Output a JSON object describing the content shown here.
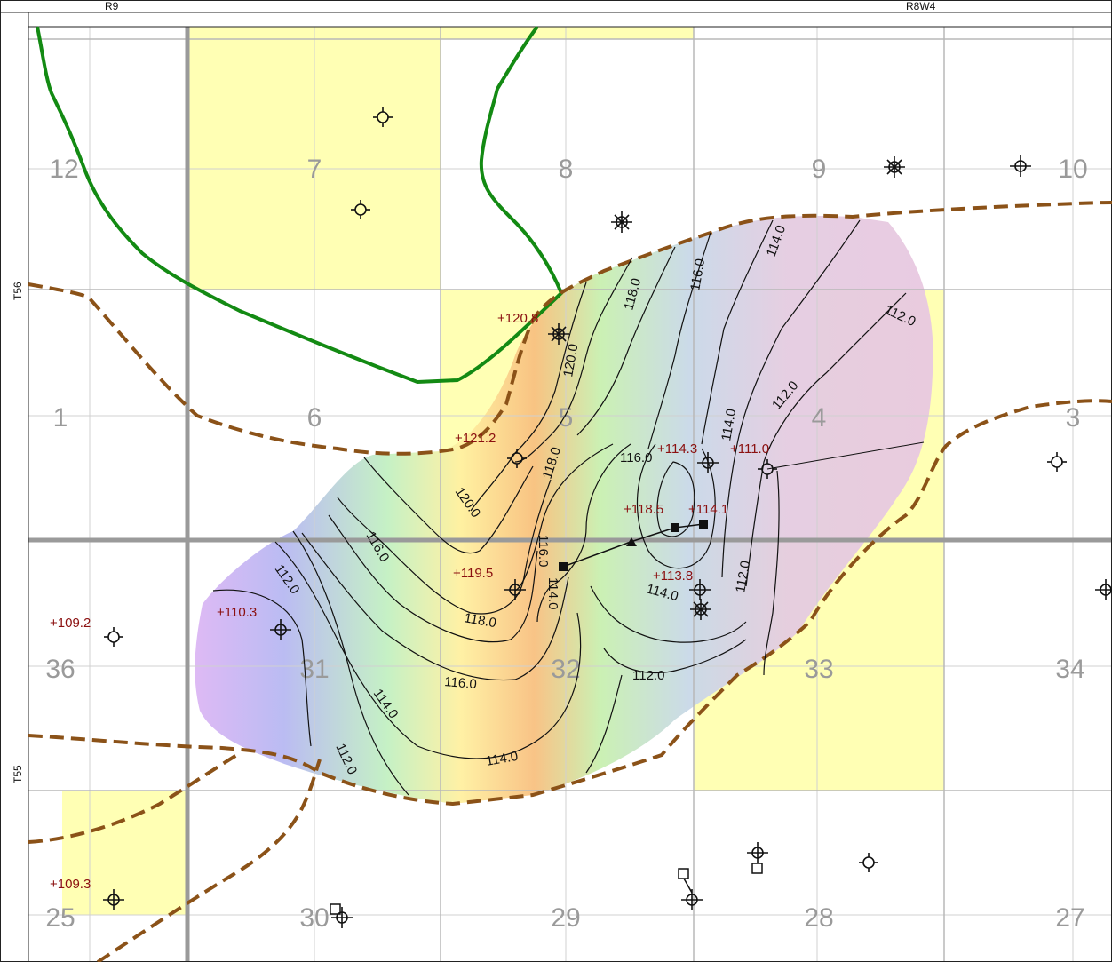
{
  "header": {
    "range_left": "R9",
    "range_right": "R8W4",
    "township_top": "T56",
    "township_bottom": "T55"
  },
  "sections": {
    "s12": "12",
    "s7": "7",
    "s8": "8",
    "s9": "9",
    "s10": "10",
    "s1": "1",
    "s6": "6",
    "s5": "5",
    "s4": "4",
    "s3": "3",
    "s36": "36",
    "s31": "31",
    "s32": "32",
    "s33": "33",
    "s34": "34",
    "s25": "25",
    "s30": "30",
    "s29": "29",
    "s28": "28",
    "s27": "27"
  },
  "well_values": {
    "v1": "+120.8",
    "v2": "+121.2",
    "v3": "+114.3",
    "v4": "+111.0",
    "v5": "+118.5",
    "v6": "+114.1",
    "v7": "+119.5",
    "v8": "+113.8",
    "v9": "+110.3",
    "v10": "+109.2",
    "v11": "+109.3"
  },
  "contour_labels": {
    "c1": "114.0",
    "c2": "116.0",
    "c3": "118.0",
    "c4": "112.0",
    "c5": "120.0",
    "c6": "112.0",
    "c7": "114.0",
    "c8": "118.0",
    "c9": "116.0",
    "c10": "120.0",
    "c11": "116.0",
    "c12": "114.0",
    "c13": "112.0",
    "c14": "118.0",
    "c15": "112.0",
    "c16": "116.0",
    "c17": "114.0",
    "c18": "112.0",
    "c19": "114.0",
    "c20": "112.0",
    "c21": "114.0",
    "c22": "116.0"
  },
  "colors": {
    "section_highlight": "#ffffb4",
    "boundary_dashed": "#8b5218",
    "green_line": "#138a13",
    "value_label": "#8b1010"
  }
}
